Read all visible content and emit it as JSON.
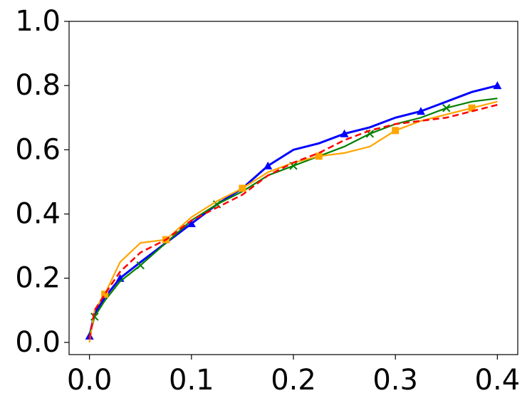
{
  "chart_data": {
    "type": "line",
    "x": [
      0,
      0.005,
      0.015,
      0.03,
      0.05,
      0.075,
      0.1,
      0.125,
      0.15,
      0.175,
      0.2,
      0.225,
      0.25,
      0.275,
      0.3,
      0.325,
      0.35,
      0.375,
      0.4
    ],
    "series": [
      {
        "color": "#0000ff",
        "marker": "triangle",
        "linestyle": "solid",
        "width": 3,
        "values": [
          0.02,
          0.09,
          0.14,
          0.2,
          0.25,
          0.31,
          0.37,
          0.43,
          0.48,
          0.55,
          0.6,
          0.62,
          0.65,
          0.67,
          0.7,
          0.72,
          0.75,
          0.78,
          0.8
        ]
      },
      {
        "color": "#008000",
        "marker": "x",
        "linestyle": "solid",
        "width": 2.2,
        "values": [
          0.02,
          0.08,
          0.13,
          0.19,
          0.24,
          0.31,
          0.38,
          0.43,
          0.47,
          0.52,
          0.55,
          0.58,
          0.61,
          0.65,
          0.68,
          0.7,
          0.73,
          0.75,
          0.76
        ]
      },
      {
        "color": "#ffa500",
        "marker": "square",
        "linestyle": "solid",
        "width": 2.2,
        "values": [
          0,
          0.1,
          0.15,
          0.25,
          0.31,
          0.32,
          0.39,
          0.44,
          0.48,
          0.53,
          0.56,
          0.58,
          0.59,
          0.61,
          0.66,
          0.69,
          0.71,
          0.73,
          0.75
        ]
      },
      {
        "color": "#ff0000",
        "marker": "none",
        "linestyle": "dashed",
        "width": 2.5,
        "values": [
          0.01,
          0.1,
          0.15,
          0.22,
          0.28,
          0.32,
          0.38,
          0.42,
          0.46,
          0.52,
          0.56,
          0.59,
          0.63,
          0.66,
          0.68,
          0.69,
          0.7,
          0.72,
          0.74
        ]
      }
    ],
    "xlim": [
      -0.02,
      0.42
    ],
    "ylim": [
      -0.038,
      1.0
    ],
    "xticks": [
      {
        "value": 0,
        "label": "0.0"
      },
      0.1,
      0.2,
      0.3,
      0.4
    ],
    "yticks": [
      {
        "value": 0,
        "label": "0.0"
      },
      0.2,
      0.4,
      0.6,
      0.8,
      {
        "value": 1,
        "label": "1.0"
      }
    ],
    "grid": false
  }
}
